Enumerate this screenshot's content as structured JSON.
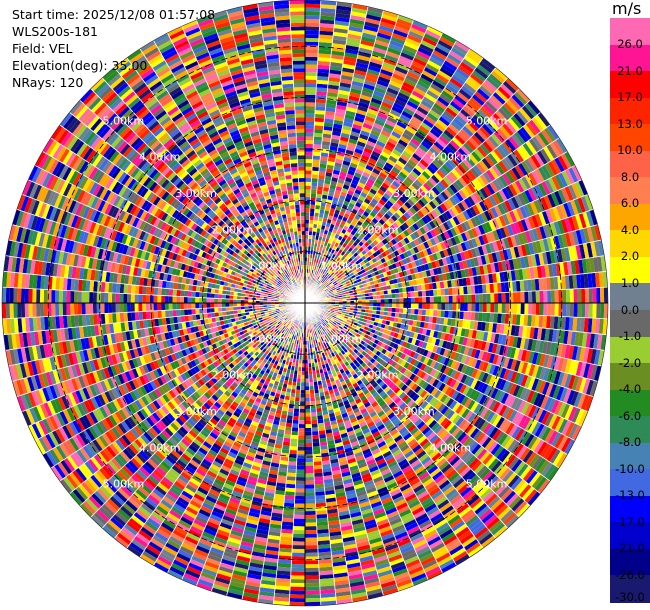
{
  "info": {
    "start_time": "Start time: 2025/12/08 01:57:08",
    "instrument": "WLS200s-181",
    "field": "Field: VEL",
    "elevation": "Elevation(deg): 35.00",
    "nrays": "NRays: 120"
  },
  "colorbar": {
    "unit": "m/s",
    "ticks": [
      "26.0",
      "21.0",
      "17.0",
      "13.0",
      "10.0",
      "8.0",
      "6.0",
      "4.0",
      "2.0",
      "1.0",
      "0.0",
      "-1.0",
      "-2.0",
      "-4.0",
      "-6.0",
      "-8.0",
      "-10.0",
      "-13.0",
      "-17.0",
      "-21.0",
      "-26.0",
      "-30.0"
    ],
    "colors": [
      "#ff69b4",
      "#ff1493",
      "#ff0000",
      "#ff2400",
      "#ff4500",
      "#ff6347",
      "#ff7f50",
      "#ffa500",
      "#ffd700",
      "#ffff00",
      "#708090",
      "#696969",
      "#9acd32",
      "#6b8e23",
      "#228b22",
      "#2e8b57",
      "#4682b4",
      "#4169e1",
      "#0000ff",
      "#0000cd",
      "#00008b",
      "#191970"
    ]
  },
  "chart_data": {
    "type": "heatmap",
    "projection": "polar",
    "field": "VEL",
    "units": "m/s",
    "nrays": 120,
    "elevation_deg": 35.0,
    "range_rings_km": [
      1.0,
      2.0,
      3.0,
      4.0,
      5.0
    ],
    "range_ring_labels": [
      "1.00km",
      "2.00km",
      "3.00km",
      "4.00km",
      "5.00km"
    ],
    "max_range_km": 5.9,
    "colorbar_ticks": [
      26.0,
      21.0,
      17.0,
      13.0,
      10.0,
      8.0,
      6.0,
      4.0,
      2.0,
      1.0,
      0.0,
      -1.0,
      -2.0,
      -4.0,
      -6.0,
      -8.0,
      -10.0,
      -13.0,
      -17.0,
      -21.0,
      -26.0,
      -30.0
    ]
  }
}
